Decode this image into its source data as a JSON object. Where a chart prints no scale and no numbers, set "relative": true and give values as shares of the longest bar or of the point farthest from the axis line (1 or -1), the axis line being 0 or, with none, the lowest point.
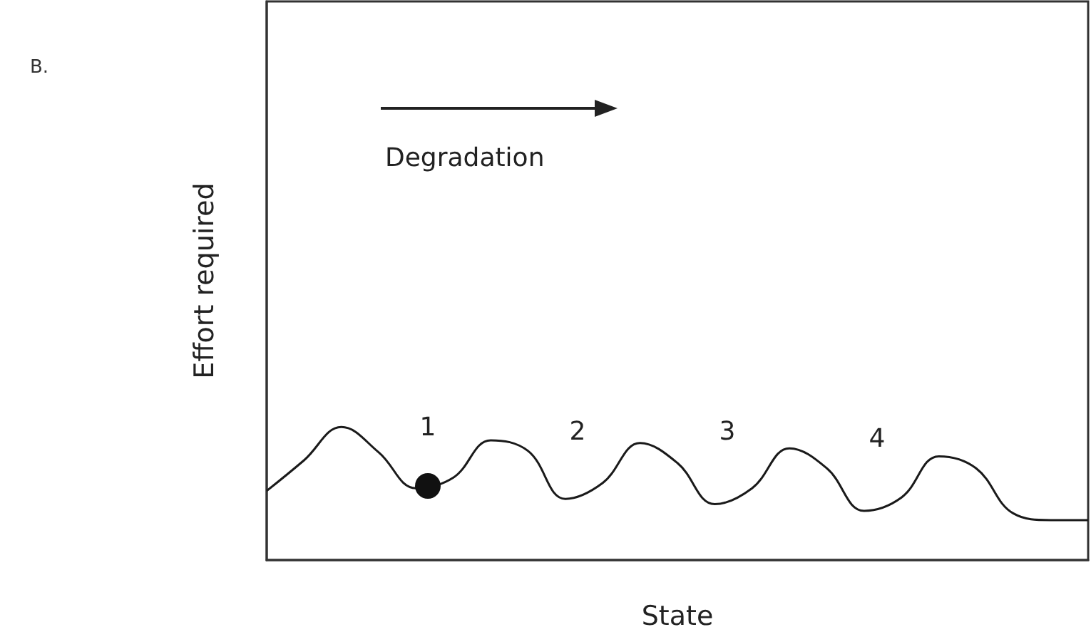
{
  "chart_data": {
    "type": "line",
    "title": "B.",
    "xlabel": "State",
    "ylabel": "Effort required",
    "relative": true,
    "color": "#1a1a1a",
    "marker": "none",
    "grid": false,
    "categories": [
      null,
      null,
      null,
      null,
      null,
      null,
      null,
      null,
      null,
      null,
      null,
      null,
      null,
      null,
      null,
      null,
      null,
      null,
      null,
      null,
      null,
      null,
      null
    ],
    "values": [
      0.52,
      0.75,
      1,
      0.81,
      0.54,
      0.62,
      0.9,
      0.82,
      0.46,
      0.58,
      0.88,
      0.73,
      0.42,
      0.54,
      0.84,
      0.69,
      0.37,
      0.47,
      0.78,
      0.69,
      0.35,
      0.3,
      0.3
    ],
    "annotations": [
      "Degradation",
      "1",
      "2",
      "3",
      "4"
    ]
  }
}
